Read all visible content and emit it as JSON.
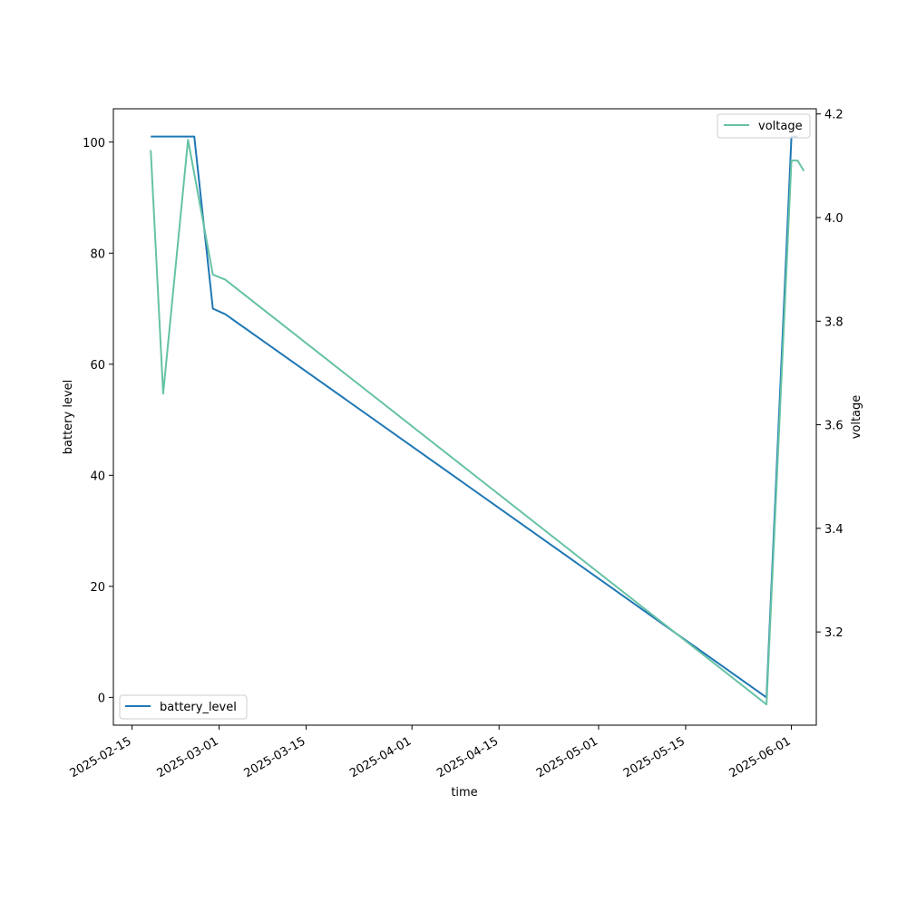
{
  "chart_data": {
    "type": "line",
    "xlabel": "time",
    "ylabel_left": "battery level",
    "ylabel_right": "voltage",
    "x_axis": {
      "type": "date",
      "xlim": [
        "2025-02-12",
        "2025-06-05"
      ],
      "ticks": [
        "2025-02-15",
        "2025-03-01",
        "2025-03-15",
        "2025-04-01",
        "2025-04-15",
        "2025-05-01",
        "2025-05-15",
        "2025-06-01"
      ]
    },
    "left_axis": {
      "ylim": [
        -5,
        106
      ],
      "ticks": [
        0,
        20,
        40,
        60,
        80,
        100
      ]
    },
    "right_axis": {
      "ylim": [
        3.02,
        4.21
      ],
      "ticks": [
        3.2,
        3.4,
        3.6,
        3.8,
        4.0,
        4.2
      ]
    },
    "grid": false,
    "series": [
      {
        "name": "battery_level",
        "axis": "left",
        "color": "#1f77b4",
        "legend_position": "lower left",
        "points": [
          [
            "2025-02-18",
            101
          ],
          [
            "2025-02-25",
            101
          ],
          [
            "2025-02-28",
            70
          ],
          [
            "2025-03-02",
            69
          ],
          [
            "2025-05-28",
            0
          ],
          [
            "2025-06-01",
            101
          ],
          [
            "2025-06-02",
            101
          ]
        ]
      },
      {
        "name": "voltage",
        "axis": "right",
        "color": "#66c2a5",
        "legend_position": "upper right",
        "points": [
          [
            "2025-02-18",
            4.13
          ],
          [
            "2025-02-20",
            3.66
          ],
          [
            "2025-02-24",
            4.15
          ],
          [
            "2025-02-28",
            3.89
          ],
          [
            "2025-03-02",
            3.88
          ],
          [
            "2025-05-28",
            3.06
          ],
          [
            "2025-06-01",
            4.11
          ],
          [
            "2025-06-02",
            4.11
          ],
          [
            "2025-06-03",
            4.09
          ]
        ]
      }
    ]
  }
}
